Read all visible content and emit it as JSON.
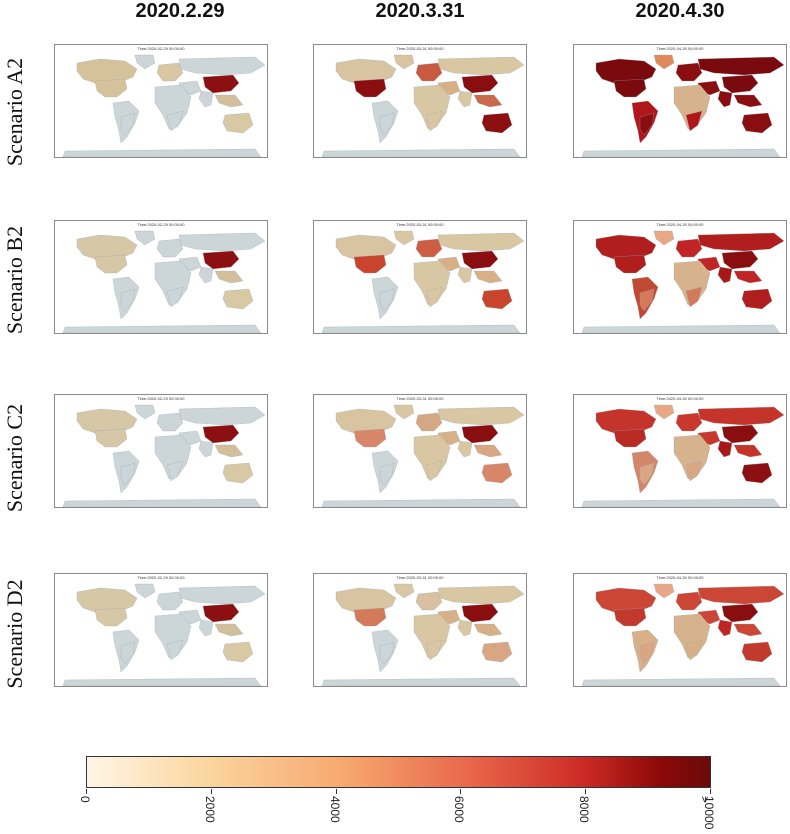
{
  "columns": [
    {
      "header": "2020.2.29",
      "map_title": "Time:2020-02-29 00:00:00"
    },
    {
      "header": "2020.3.31",
      "map_title": "Time:2020-03-31 00:00:00"
    },
    {
      "header": "2020.4.30",
      "map_title": "Time:2020-04-30 00:00:00"
    }
  ],
  "rows": [
    {
      "label": "Scenario A2"
    },
    {
      "label": "Scenario B2"
    },
    {
      "label": "Scenario C2"
    },
    {
      "label": "Scenario D2"
    }
  ],
  "colors": {
    "nodata": "#ccd6d9",
    "ocean": "#ffffff",
    "border": "#9aa6aa"
  },
  "legend": {
    "ticks": [
      "0",
      "2000",
      "4000",
      "6000",
      "8000",
      "10000"
    ],
    "extend": ">"
  },
  "regions": [
    "north_america",
    "usa",
    "greenland",
    "south_america",
    "brazil_south",
    "europe",
    "russia",
    "middle_east",
    "africa",
    "africa_south",
    "china",
    "india",
    "se_asia",
    "australia",
    "antarctica"
  ],
  "region_colors": [
    [
      "#d6c29a",
      "#d6c29a",
      "#ccd6d9",
      "#ccd6d9",
      "#ccd6d9",
      "#d9c7a3",
      "#ccd6d9",
      "#ccd6d9",
      "#ccd6d9",
      "#ccd6d9",
      "#8c0f12",
      "#ccd6d9",
      "#d1bf9c",
      "#d8c8a4",
      "#ccd6d9",
      "#d8c4a0",
      "#8a0d10",
      "#d9c3a0",
      "#ccd6d9",
      "#ccd6d9",
      "#c75a40",
      "#d9c7a3",
      "#d8b088",
      "#d9c7a3",
      "#d9c7a3",
      "#8a0d10",
      "#d9c7a3",
      "#c86a4a",
      "#8c0f12",
      "#ccd6d9",
      "#7a0a0e",
      "#7a0a0e",
      "#e08a5c",
      "#b0161a",
      "#8a0d10",
      "#8a0d10",
      "#7a0a0e",
      "#8a0d10",
      "#d6b38c",
      "#b0161a",
      "#7a0a0e",
      "#8a0d10",
      "#8a0d10",
      "#8a0d10",
      "#ccd6d9"
    ],
    [
      "#d6c7a6",
      "#d6c7a6",
      "#ccd6d9",
      "#ccd6d9",
      "#ccd6d9",
      "#ccd6d9",
      "#ccd6d9",
      "#ccd6d9",
      "#ccd6d9",
      "#ccd6d9",
      "#8c0f12",
      "#ccd6d9",
      "#d1bf9c",
      "#d8c8a4",
      "#ccd6d9",
      "#d9c4a2",
      "#c8442c",
      "#d9c7a3",
      "#ccd6d9",
      "#ccd6d9",
      "#cd5e44",
      "#d9c7a3",
      "#d8b088",
      "#d9c7a3",
      "#d9c7a3",
      "#8a0d10",
      "#d9c7a3",
      "#d8b088",
      "#c8442c",
      "#ccd6d9",
      "#b01e1e",
      "#b01e1e",
      "#e8a888",
      "#c24a34",
      "#d27a5a",
      "#c02424",
      "#b01e1e",
      "#c02424",
      "#d6b38c",
      "#d27a5a",
      "#8a0d10",
      "#a81818",
      "#c02424",
      "#b01e1e",
      "#ccd6d9"
    ],
    [
      "#d6c7a6",
      "#d6c7a6",
      "#ccd6d9",
      "#ccd6d9",
      "#ccd6d9",
      "#ccd6d9",
      "#ccd6d9",
      "#ccd6d9",
      "#ccd6d9",
      "#ccd6d9",
      "#8c0f12",
      "#ccd6d9",
      "#d1bf9c",
      "#d8c8a4",
      "#ccd6d9",
      "#d9c4a2",
      "#d8866a",
      "#d9c7a3",
      "#ccd6d9",
      "#ccd6d9",
      "#d4a884",
      "#d9c7a3",
      "#d8b088",
      "#d9c7a3",
      "#d9c7a3",
      "#8a0d10",
      "#d9c7a3",
      "#d8a682",
      "#d8866a",
      "#ccd6d9",
      "#c4342a",
      "#b82a24",
      "#e8a888",
      "#d4866a",
      "#d8a682",
      "#c8382c",
      "#c4342a",
      "#c8382c",
      "#d6b38c",
      "#d8a682",
      "#8a0d10",
      "#a81818",
      "#c4342a",
      "#8c0f12",
      "#ccd6d9"
    ],
    [
      "#d6c7a6",
      "#d6c7a6",
      "#ccd6d9",
      "#ccd6d9",
      "#ccd6d9",
      "#ccd6d9",
      "#ccd6d9",
      "#ccd6d9",
      "#ccd6d9",
      "#ccd6d9",
      "#8c0f12",
      "#ccd6d9",
      "#d1bf9c",
      "#d8c8a4",
      "#ccd6d9",
      "#d9c4a2",
      "#d27a5a",
      "#d9c7a3",
      "#ccd6d9",
      "#ccd6d9",
      "#d9c0a0",
      "#d9c7a3",
      "#d8b088",
      "#d9c7a3",
      "#d9c7a3",
      "#8a0d10",
      "#d9c7a3",
      "#d8b088",
      "#d8a682",
      "#ccd6d9",
      "#cc4636",
      "#c23a2e",
      "#e8a888",
      "#d8b088",
      "#d8a682",
      "#cc4636",
      "#cc4636",
      "#cc4636",
      "#d6b38c",
      "#d8b088",
      "#8a0d10",
      "#c02424",
      "#cc4636",
      "#c23a2e",
      "#ccd6d9"
    ]
  ]
}
